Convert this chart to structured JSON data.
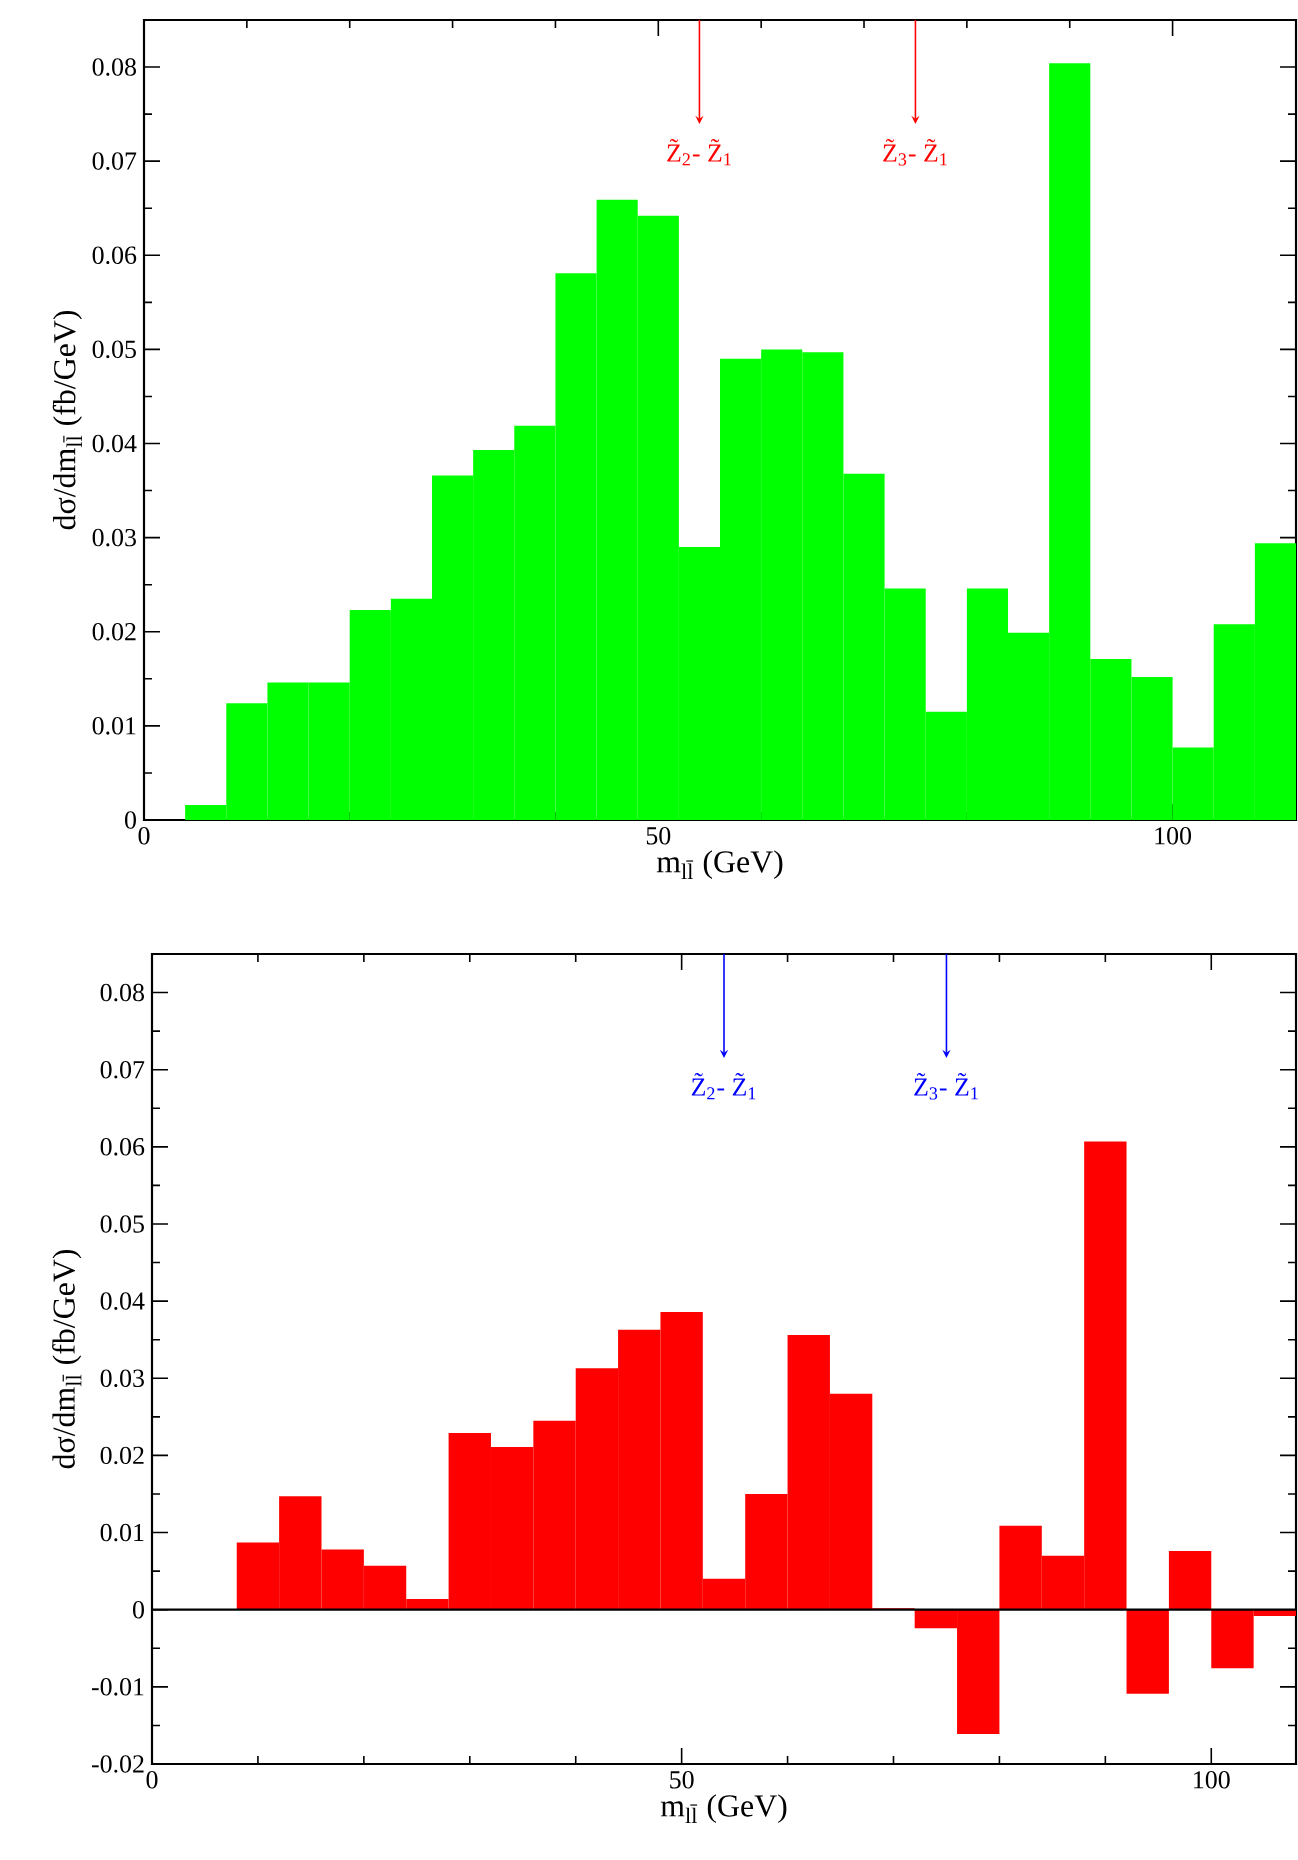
{
  "chart_data": [
    {
      "type": "histogram",
      "xlabel": "m$_{ll̄}$ (GeV)",
      "ylabel": "dσ/dm$_{ll̄}$ (fb/GeV)",
      "color": "#00ff00",
      "bins": [
        4,
        8,
        12,
        16,
        20,
        24,
        28,
        32,
        36,
        40,
        44,
        48,
        52,
        56,
        60,
        64,
        68,
        72,
        76,
        80,
        84,
        88,
        92,
        96,
        100,
        104,
        108,
        112
      ],
      "values": [
        0.0016,
        0.0124,
        0.0146,
        0.0146,
        0.0223,
        0.0235,
        0.0366,
        0.0393,
        0.0419,
        0.0581,
        0.0659,
        0.0642,
        0.029,
        0.049,
        0.05,
        0.0497,
        0.0368,
        0.0246,
        0.0115,
        0.0246,
        0.0199,
        0.0804,
        0.0171,
        0.0152,
        0.0077,
        0.0208,
        0.0294
      ],
      "xlim": [
        0,
        112
      ],
      "ylim": [
        0,
        0.085
      ],
      "xticks": [
        0,
        50,
        100
      ],
      "yticks": [
        0,
        0.01,
        0.02,
        0.03,
        0.04,
        0.05,
        0.06,
        0.07,
        0.08
      ],
      "ref_lines": [
        {
          "axis": "x",
          "value": 54,
          "label": "Z̃$_{2}$- Z̃$_{1}$",
          "color": "#ff0000"
        },
        {
          "axis": "x",
          "value": 75,
          "label": "Z̃$_{3}$- Z̃$_{1}$",
          "color": "#ff0000"
        }
      ]
    },
    {
      "type": "histogram",
      "xlabel": "m$_{ll̄}$ (GeV)",
      "ylabel": "dσ/dm$_{ll̄}$ (fb/GeV)",
      "color": "#ff0000",
      "bins": [
        4,
        8,
        12,
        16,
        20,
        24,
        28,
        32,
        36,
        40,
        44,
        48,
        52,
        56,
        60,
        64,
        68,
        72,
        76,
        80,
        84,
        88,
        92,
        96,
        100,
        104,
        108
      ],
      "values": [
        0,
        0.0087,
        0.0147,
        0.0078,
        0.0057,
        0.0014,
        0.0229,
        0.0211,
        0.0245,
        0.0313,
        0.0363,
        0.0386,
        0.004,
        0.015,
        0.0356,
        0.028,
        0.0002,
        -0.0024,
        -0.0161,
        0.0109,
        0.007,
        0.0607,
        -0.0109,
        0.0076,
        -0.0076,
        -0.0008
      ],
      "xlim": [
        0,
        108
      ],
      "ylim": [
        -0.02,
        0.085
      ],
      "xticks": [
        0,
        50,
        100
      ],
      "yticks": [
        -0.02,
        -0.01,
        0,
        0.01,
        0.02,
        0.03,
        0.04,
        0.05,
        0.06,
        0.07,
        0.08
      ],
      "ref_lines": [
        {
          "axis": "y",
          "value": 0,
          "color": "#000000"
        },
        {
          "axis": "x",
          "value": 54,
          "label": "Z̃$_{2}$- Z̃$_{1}$",
          "color": "#0000ff"
        },
        {
          "axis": "x",
          "value": 75,
          "label": "Z̃$_{3}$- Z̃$_{1}$",
          "color": "#0000ff"
        }
      ]
    }
  ]
}
